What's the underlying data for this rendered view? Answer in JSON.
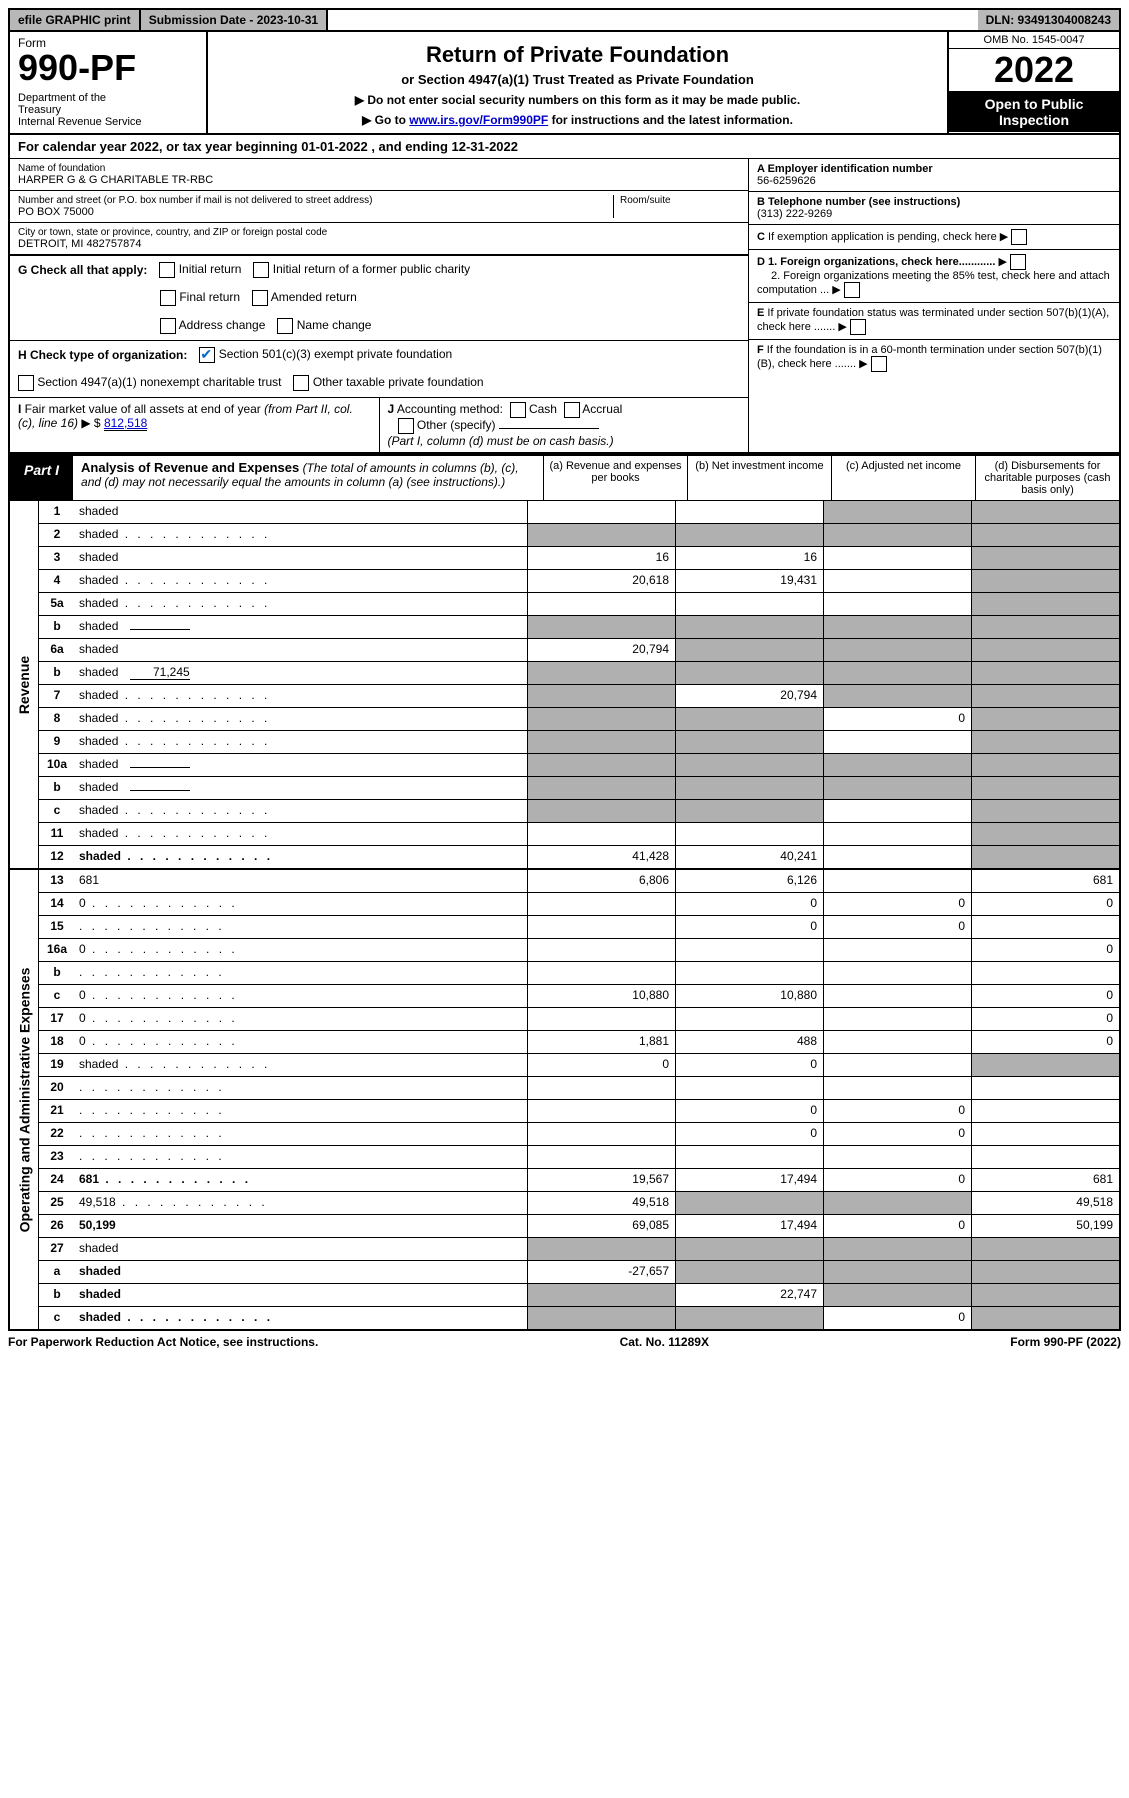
{
  "topbar": {
    "efile": "efile GRAPHIC print",
    "submission": "Submission Date - 2023-10-31",
    "dln": "DLN: 93491304008243"
  },
  "header": {
    "form_label": "Form",
    "form_number": "990-PF",
    "dept": "Department of the Treasury\nInternal Revenue Service",
    "title": "Return of Private Foundation",
    "subtitle": "or Section 4947(a)(1) Trust Treated as Private Foundation",
    "instr1": "▶ Do not enter social security numbers on this form as it may be made public.",
    "instr2": "▶ Go to www.irs.gov/Form990PF for instructions and the latest information.",
    "instr2_link": "www.irs.gov/Form990PF",
    "omb": "OMB No. 1545-0047",
    "year": "2022",
    "open": "Open to Public Inspection"
  },
  "calendar": "For calendar year 2022, or tax year beginning 01-01-2022            , and ending 12-31-2022",
  "info": {
    "name_label": "Name of foundation",
    "name": "HARPER G & G CHARITABLE TR-RBC",
    "addr_label": "Number and street (or P.O. box number if mail is not delivered to street address)",
    "addr": "PO BOX 75000",
    "room_label": "Room/suite",
    "city_label": "City or town, state or province, country, and ZIP or foreign postal code",
    "city": "DETROIT, MI  482757874",
    "ein_label": "A Employer identification number",
    "ein": "56-6259626",
    "tel_label": "B Telephone number (see instructions)",
    "tel": "(313) 222-9269",
    "c_label": "C If exemption application is pending, check here",
    "d1": "D 1. Foreign organizations, check here............",
    "d2": "2. Foreign organizations meeting the 85% test, check here and attach computation ...",
    "e_label": "E  If private foundation status was terminated under section 507(b)(1)(A), check here .......",
    "f_label": "F  If the foundation is in a 60-month termination under section 507(b)(1)(B), check here ......."
  },
  "section_g": {
    "label": "G Check all that apply:",
    "initial": "Initial return",
    "initial_former": "Initial return of a former public charity",
    "final": "Final return",
    "amended": "Amended return",
    "addr_change": "Address change",
    "name_change": "Name change"
  },
  "section_h": {
    "label": "H Check type of organization:",
    "c3": "Section 501(c)(3) exempt private foundation",
    "trust": "Section 4947(a)(1) nonexempt charitable trust",
    "other": "Other taxable private foundation"
  },
  "section_i": {
    "label": "I Fair market value of all assets at end of year (from Part II, col. (c), line 16) ▶ $",
    "value": "812,518"
  },
  "section_j": {
    "label": "J Accounting method:",
    "cash": "Cash",
    "accrual": "Accrual",
    "other": "Other (specify)",
    "note": "(Part I, column (d) must be on cash basis.)"
  },
  "part1": {
    "label": "Part I",
    "title": "Analysis of Revenue and Expenses",
    "title_note": "(The total of amounts in columns (b), (c), and (d) may not necessarily equal the amounts in column (a) (see instructions).)",
    "col_a": "(a)   Revenue and expenses per books",
    "col_b": "(b)   Net investment income",
    "col_c": "(c)   Adjusted net income",
    "col_d": "(d)   Disbursements for charitable purposes (cash basis only)"
  },
  "sides": {
    "revenue": "Revenue",
    "expenses": "Operating and Administrative Expenses"
  },
  "lines": [
    {
      "n": "1",
      "d": "shaded",
      "a": "",
      "b": "",
      "c": "shaded"
    },
    {
      "n": "2",
      "d": "shaded",
      "a": "shaded",
      "b": "shaded",
      "c": "shaded",
      "dots": true
    },
    {
      "n": "3",
      "d": "shaded",
      "a": "16",
      "b": "16",
      "c": ""
    },
    {
      "n": "4",
      "d": "shaded",
      "a": "20,618",
      "b": "19,431",
      "c": "",
      "dots": true
    },
    {
      "n": "5a",
      "d": "shaded",
      "a": "",
      "b": "",
      "c": "",
      "dots": true
    },
    {
      "n": "b",
      "d": "shaded",
      "a": "shaded",
      "b": "shaded",
      "c": "shaded",
      "inline": ""
    },
    {
      "n": "6a",
      "d": "shaded",
      "a": "20,794",
      "b": "shaded",
      "c": "shaded"
    },
    {
      "n": "b",
      "d": "shaded",
      "a": "shaded",
      "b": "shaded",
      "c": "shaded",
      "inline": "71,245"
    },
    {
      "n": "7",
      "d": "shaded",
      "a": "shaded",
      "b": "20,794",
      "c": "shaded",
      "dots": true
    },
    {
      "n": "8",
      "d": "shaded",
      "a": "shaded",
      "b": "shaded",
      "c": "0",
      "dots": true
    },
    {
      "n": "9",
      "d": "shaded",
      "a": "shaded",
      "b": "shaded",
      "c": "",
      "dots": true
    },
    {
      "n": "10a",
      "d": "shaded",
      "a": "shaded",
      "b": "shaded",
      "c": "shaded",
      "inline": ""
    },
    {
      "n": "b",
      "d": "shaded",
      "a": "shaded",
      "b": "shaded",
      "c": "shaded",
      "dots": true,
      "inline": ""
    },
    {
      "n": "c",
      "d": "shaded",
      "a": "shaded",
      "b": "shaded",
      "c": "",
      "dots": true
    },
    {
      "n": "11",
      "d": "shaded",
      "a": "",
      "b": "",
      "c": "",
      "dots": true
    },
    {
      "n": "12",
      "d": "shaded",
      "a": "41,428",
      "b": "40,241",
      "c": "",
      "bold": true,
      "dots": true
    }
  ],
  "exp_lines": [
    {
      "n": "13",
      "d": "681",
      "a": "6,806",
      "b": "6,126",
      "c": ""
    },
    {
      "n": "14",
      "d": "0",
      "a": "",
      "b": "0",
      "c": "0",
      "dots": true
    },
    {
      "n": "15",
      "d": "",
      "a": "",
      "b": "0",
      "c": "0",
      "dots": true
    },
    {
      "n": "16a",
      "d": "0",
      "a": "",
      "b": "",
      "c": "",
      "dots": true
    },
    {
      "n": "b",
      "d": "",
      "a": "",
      "b": "",
      "c": "",
      "dots": true
    },
    {
      "n": "c",
      "d": "0",
      "a": "10,880",
      "b": "10,880",
      "c": "",
      "dots": true
    },
    {
      "n": "17",
      "d": "0",
      "a": "",
      "b": "",
      "c": "",
      "dots": true
    },
    {
      "n": "18",
      "d": "0",
      "a": "1,881",
      "b": "488",
      "c": "",
      "dots": true
    },
    {
      "n": "19",
      "d": "shaded",
      "a": "0",
      "b": "0",
      "c": "",
      "dots": true
    },
    {
      "n": "20",
      "d": "",
      "a": "",
      "b": "",
      "c": "",
      "dots": true
    },
    {
      "n": "21",
      "d": "",
      "a": "",
      "b": "0",
      "c": "0",
      "dots": true
    },
    {
      "n": "22",
      "d": "",
      "a": "",
      "b": "0",
      "c": "0",
      "dots": true
    },
    {
      "n": "23",
      "d": "",
      "a": "",
      "b": "",
      "c": "",
      "dots": true
    },
    {
      "n": "24",
      "d": "681",
      "a": "19,567",
      "b": "17,494",
      "c": "0",
      "bold": true,
      "dots": true
    },
    {
      "n": "25",
      "d": "49,518",
      "a": "49,518",
      "b": "shaded",
      "c": "shaded",
      "dots": true
    },
    {
      "n": "26",
      "d": "50,199",
      "a": "69,085",
      "b": "17,494",
      "c": "0",
      "bold": true
    },
    {
      "n": "27",
      "d": "shaded",
      "a": "shaded",
      "b": "shaded",
      "c": "shaded"
    },
    {
      "n": "a",
      "d": "shaded",
      "a": "-27,657",
      "b": "shaded",
      "c": "shaded",
      "bold": true
    },
    {
      "n": "b",
      "d": "shaded",
      "a": "shaded",
      "b": "22,747",
      "c": "shaded",
      "bold": true
    },
    {
      "n": "c",
      "d": "shaded",
      "a": "shaded",
      "b": "shaded",
      "c": "0",
      "bold": true,
      "dots": true
    }
  ],
  "footer": {
    "left": "For Paperwork Reduction Act Notice, see instructions.",
    "center": "Cat. No. 11289X",
    "right": "Form 990-PF (2022)"
  },
  "colors": {
    "shaded": "#b0b0b0",
    "link": "#0000cc",
    "black": "#000000",
    "check": "#0066cc"
  }
}
